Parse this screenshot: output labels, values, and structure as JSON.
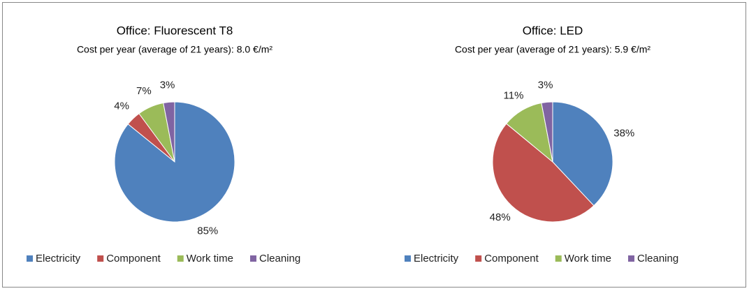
{
  "chart_data": [
    {
      "type": "pie",
      "title": "Office: Fluorescent T8",
      "subtitle": "Cost per year (average of 21 years): 8.0 €/m²",
      "categories": [
        "Electricity",
        "Component",
        "Work time",
        "Cleaning"
      ],
      "values": [
        85,
        4,
        7,
        3
      ],
      "value_labels": [
        "85%",
        "4%",
        "7%",
        "3%"
      ],
      "colors": [
        "#4f81bd",
        "#c0504d",
        "#9bbb59",
        "#8064a2"
      ],
      "legend": "bottom"
    },
    {
      "type": "pie",
      "title": "Office: LED",
      "subtitle": "Cost per year (average of 21 years): 5.9 €/m²",
      "categories": [
        "Electricity",
        "Component",
        "Work time",
        "Cleaning"
      ],
      "values": [
        38,
        48,
        11,
        3
      ],
      "value_labels": [
        "38%",
        "48%",
        "11%",
        "3%"
      ],
      "colors": [
        "#4f81bd",
        "#c0504d",
        "#9bbb59",
        "#8064a2"
      ],
      "legend": "bottom"
    }
  ]
}
